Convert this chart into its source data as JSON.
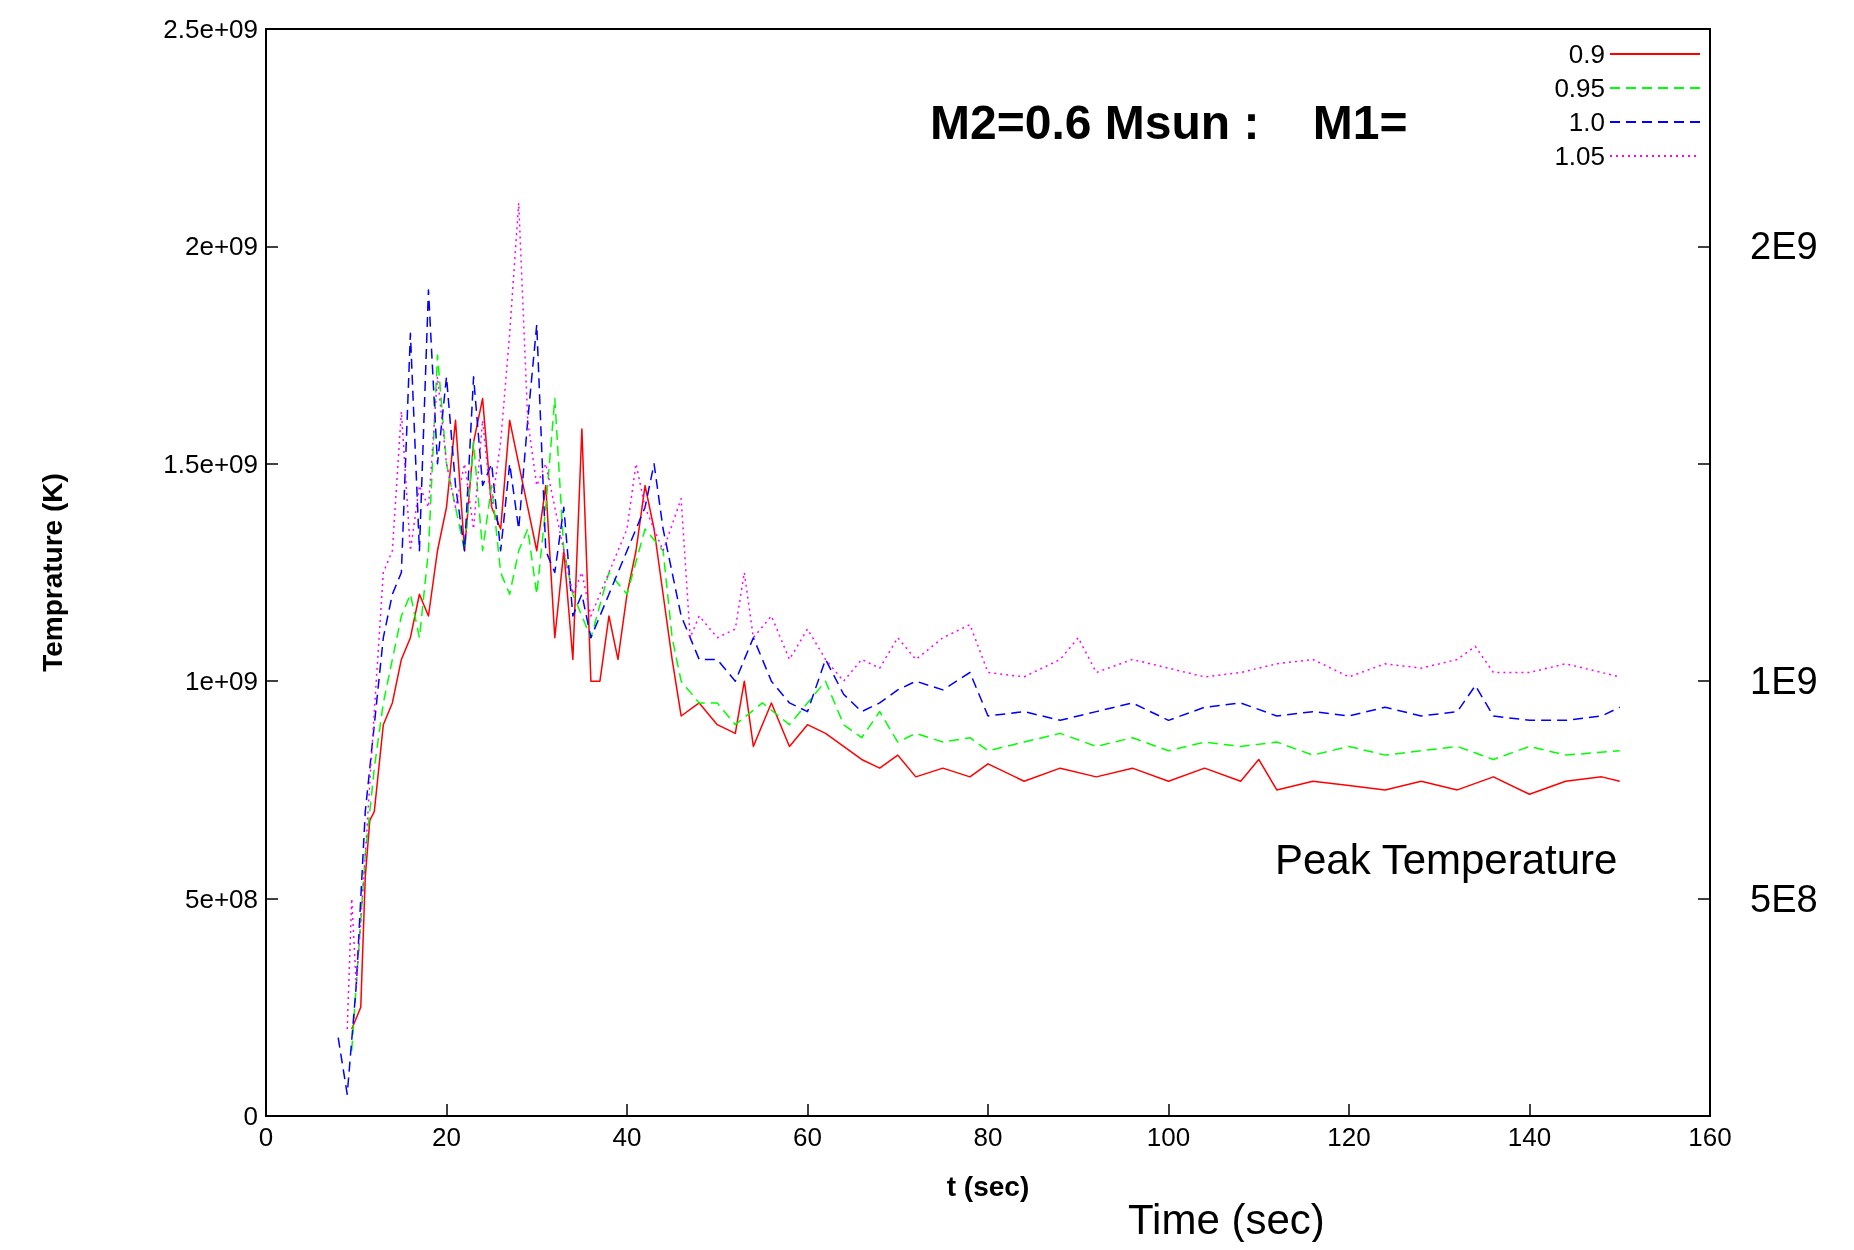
{
  "chart_data": {
    "type": "line",
    "xlabel": "t (sec)",
    "ylabel": "Temprature (K)",
    "annotations": [
      "Time (sec)",
      "Peak Temperature",
      "M2=0.6 Msun :    M1="
    ],
    "xlim": [
      0,
      160
    ],
    "xticks": [
      0,
      20,
      40,
      60,
      80,
      100,
      120,
      140,
      160
    ],
    "ylim": [
      0,
      2500000000
    ],
    "yticks": [
      {
        "value": 0,
        "label": "0"
      },
      {
        "value": 500000000,
        "label": "5e+08"
      },
      {
        "value": 1000000000,
        "label": "1e+09"
      },
      {
        "value": 1500000000,
        "label": "1.5e+09"
      },
      {
        "value": 2000000000,
        "label": "2e+09"
      },
      {
        "value": 2500000000,
        "label": "2.5e+09"
      }
    ],
    "y2lim": [
      0,
      2500000000
    ],
    "y2ticks": [
      {
        "value": 500000000,
        "label": "5E8"
      },
      {
        "value": 1000000000,
        "label": "1E9"
      },
      {
        "value": 1500000000,
        "label": null
      },
      {
        "value": 2000000000,
        "label": "2E9"
      }
    ],
    "grid": false,
    "legend": "top right",
    "marker": "none",
    "series": [
      {
        "name": "0.9",
        "color": "#ff0000",
        "line_style": "solid",
        "x": [
          9.5,
          10.5,
          11,
          11.5,
          12,
          13,
          14,
          15,
          16,
          17,
          18,
          19,
          20,
          21,
          22,
          23,
          24,
          25,
          26,
          27,
          28,
          29,
          30,
          31,
          32,
          33,
          34,
          35,
          36,
          37,
          38,
          39,
          40,
          41,
          42,
          43,
          44,
          45,
          46,
          48,
          50,
          52,
          53,
          54,
          56,
          58,
          60,
          62,
          64,
          66,
          68,
          70,
          72,
          75,
          78,
          80,
          84,
          88,
          92,
          96,
          100,
          104,
          108,
          110,
          112,
          116,
          120,
          124,
          128,
          132,
          136,
          140,
          144,
          148,
          150
        ],
        "values": [
          200000000.0,
          250000000.0,
          550000000.0,
          680000000.0,
          700000000.0,
          900000000.0,
          950000000.0,
          1050000000.0,
          1100000000.0,
          1200000000.0,
          1150000000.0,
          1300000000.0,
          1400000000.0,
          1600000000.0,
          1300000000.0,
          1550000000.0,
          1650000000.0,
          1400000000.0,
          1350000000.0,
          1600000000.0,
          1500000000.0,
          1400000000.0,
          1300000000.0,
          1450000000.0,
          1100000000.0,
          1300000000.0,
          1050000000.0,
          1580000000.0,
          1000000000.0,
          1000000000.0,
          1150000000.0,
          1050000000.0,
          1200000000.0,
          1300000000.0,
          1450000000.0,
          1350000000.0,
          1200000000.0,
          1050000000.0,
          920000000.0,
          950000000.0,
          900000000.0,
          880000000.0,
          1000000000.0,
          850000000.0,
          950000000.0,
          850000000.0,
          900000000.0,
          880000000.0,
          850000000.0,
          820000000.0,
          800000000.0,
          830000000.0,
          780000000.0,
          800000000.0,
          780000000.0,
          810000000.0,
          770000000.0,
          800000000.0,
          780000000.0,
          800000000.0,
          770000000.0,
          800000000.0,
          770000000.0,
          820000000.0,
          750000000.0,
          770000000.0,
          760000000.0,
          750000000.0,
          770000000.0,
          750000000.0,
          780000000.0,
          740000000.0,
          770000000.0,
          780000000.0,
          770000000.0
        ]
      },
      {
        "name": "0.95",
        "color": "#00ff00",
        "line_style": "dashed",
        "x": [
          9.5,
          10,
          11,
          12,
          13,
          14,
          15,
          16,
          17,
          18,
          19,
          20,
          21,
          22,
          23,
          24,
          25,
          26,
          27,
          28,
          29,
          30,
          31,
          32,
          33,
          34,
          35,
          36,
          38,
          40,
          42,
          44,
          45,
          46,
          48,
          50,
          52,
          55,
          58,
          60,
          62,
          64,
          66,
          68,
          70,
          72,
          75,
          78,
          80,
          84,
          88,
          92,
          96,
          100,
          104,
          108,
          112,
          116,
          120,
          124,
          128,
          132,
          136,
          140,
          144,
          150
        ],
        "values": [
          150000000.0,
          300000000.0,
          600000000.0,
          800000000.0,
          950000000.0,
          1050000000.0,
          1150000000.0,
          1200000000.0,
          1100000000.0,
          1300000000.0,
          1750000000.0,
          1500000000.0,
          1400000000.0,
          1300000000.0,
          1550000000.0,
          1300000000.0,
          1450000000.0,
          1250000000.0,
          1200000000.0,
          1300000000.0,
          1350000000.0,
          1200000000.0,
          1400000000.0,
          1650000000.0,
          1300000000.0,
          1200000000.0,
          1150000000.0,
          1100000000.0,
          1250000000.0,
          1200000000.0,
          1350000000.0,
          1300000000.0,
          1100000000.0,
          1000000000.0,
          950000000.0,
          950000000.0,
          900000000.0,
          950000000.0,
          900000000.0,
          950000000.0,
          1000000000.0,
          900000000.0,
          870000000.0,
          930000000.0,
          860000000.0,
          880000000.0,
          860000000.0,
          870000000.0,
          840000000.0,
          860000000.0,
          880000000.0,
          850000000.0,
          870000000.0,
          840000000.0,
          860000000.0,
          850000000.0,
          860000000.0,
          830000000.0,
          850000000.0,
          830000000.0,
          840000000.0,
          850000000.0,
          820000000.0,
          850000000.0,
          830000000.0,
          840000000.0
        ]
      },
      {
        "name": "1.0",
        "color": "#0000ff",
        "line_style": "dashed",
        "x": [
          8,
          9,
          10,
          11,
          12,
          13,
          14,
          15,
          16,
          17,
          18,
          19,
          20,
          21,
          22,
          23,
          24,
          25,
          26,
          27,
          28,
          29,
          30,
          31,
          32,
          33,
          34,
          35,
          36,
          38,
          40,
          42,
          43,
          44,
          45,
          46,
          48,
          50,
          52,
          54,
          56,
          58,
          60,
          62,
          64,
          66,
          68,
          70,
          72,
          75,
          78,
          80,
          84,
          88,
          92,
          96,
          100,
          104,
          108,
          112,
          116,
          120,
          124,
          128,
          132,
          134,
          136,
          140,
          144,
          148,
          150
        ],
        "values": [
          180000000.0,
          50000000.0,
          300000000.0,
          700000000.0,
          900000000.0,
          1100000000.0,
          1200000000.0,
          1250000000.0,
          1800000000.0,
          1300000000.0,
          1900000000.0,
          1500000000.0,
          1700000000.0,
          1450000000.0,
          1300000000.0,
          1700000000.0,
          1450000000.0,
          1500000000.0,
          1300000000.0,
          1500000000.0,
          1350000000.0,
          1600000000.0,
          1820000000.0,
          1300000000.0,
          1250000000.0,
          1400000000.0,
          1150000000.0,
          1200000000.0,
          1100000000.0,
          1200000000.0,
          1300000000.0,
          1400000000.0,
          1500000000.0,
          1350000000.0,
          1250000000.0,
          1150000000.0,
          1050000000.0,
          1050000000.0,
          1000000000.0,
          1100000000.0,
          1000000000.0,
          950000000.0,
          930000000.0,
          1050000000.0,
          970000000.0,
          930000000.0,
          950000000.0,
          980000000.0,
          1000000000.0,
          980000000.0,
          1020000000.0,
          920000000.0,
          930000000.0,
          910000000.0,
          930000000.0,
          950000000.0,
          910000000.0,
          940000000.0,
          950000000.0,
          920000000.0,
          930000000.0,
          920000000.0,
          940000000.0,
          920000000.0,
          930000000.0,
          990000000.0,
          920000000.0,
          910000000.0,
          910000000.0,
          920000000.0,
          940000000.0
        ]
      },
      {
        "name": "1.05",
        "color": "#ff00ff",
        "line_style": "dotted",
        "x": [
          9,
          9.5,
          10,
          11,
          12,
          13,
          14,
          15,
          16,
          17,
          18,
          19,
          20,
          21,
          22,
          23,
          24,
          25,
          26,
          27,
          28,
          29,
          30,
          31,
          32,
          33,
          34,
          35,
          36,
          38,
          40,
          41,
          42,
          44,
          46,
          47,
          48,
          50,
          52,
          53,
          54,
          56,
          58,
          60,
          62,
          64,
          66,
          68,
          70,
          72,
          75,
          78,
          80,
          84,
          88,
          90,
          92,
          96,
          100,
          104,
          108,
          112,
          116,
          120,
          124,
          128,
          132,
          134,
          136,
          140,
          144,
          148,
          150
        ],
        "values": [
          200000000.0,
          500000000.0,
          300000000.0,
          600000000.0,
          930000000.0,
          1250000000.0,
          1300000000.0,
          1620000000.0,
          1300000000.0,
          1450000000.0,
          1400000000.0,
          1700000000.0,
          1500000000.0,
          1400000000.0,
          1500000000.0,
          1350000000.0,
          1600000000.0,
          1400000000.0,
          1550000000.0,
          1800000000.0,
          2100000000.0,
          1600000000.0,
          1450000000.0,
          1500000000.0,
          1400000000.0,
          1300000000.0,
          1200000000.0,
          1250000000.0,
          1150000000.0,
          1250000000.0,
          1350000000.0,
          1500000000.0,
          1400000000.0,
          1300000000.0,
          1420000000.0,
          1100000000.0,
          1150000000.0,
          1100000000.0,
          1120000000.0,
          1250000000.0,
          1100000000.0,
          1150000000.0,
          1050000000.0,
          1120000000.0,
          1050000000.0,
          1000000000.0,
          1050000000.0,
          1030000000.0,
          1100000000.0,
          1050000000.0,
          1100000000.0,
          1130000000.0,
          1020000000.0,
          1010000000.0,
          1050000000.0,
          1100000000.0,
          1020000000.0,
          1050000000.0,
          1030000000.0,
          1010000000.0,
          1020000000.0,
          1040000000.0,
          1050000000.0,
          1010000000.0,
          1040000000.0,
          1030000000.0,
          1050000000.0,
          1080000000.0,
          1020000000.0,
          1020000000.0,
          1040000000.0,
          1020000000.0,
          1010000000.0
        ]
      }
    ]
  }
}
